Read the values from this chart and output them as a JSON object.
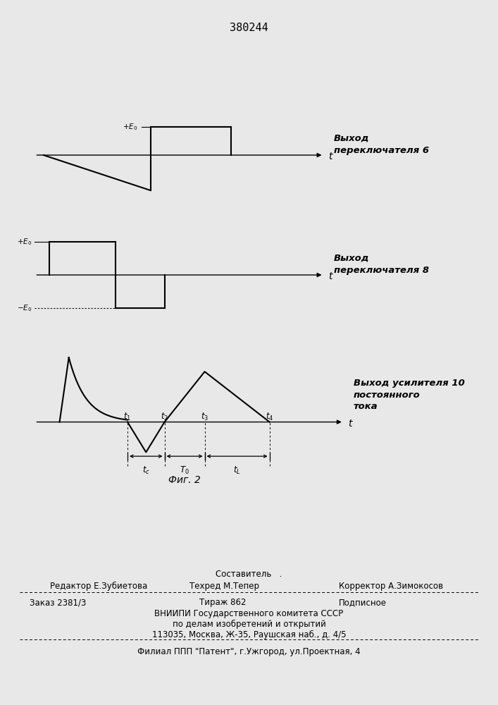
{
  "title": "380244",
  "bg_color": "#e8e8e8",
  "line_color": "#000000",
  "label1": "Выход\nпереключателя 6",
  "label2": "Выход\nпереключателя 8",
  "label3": "Выход усилителя 10\nпостоянного\nтока",
  "fig_caption": "Фиг. 2",
  "footer_line1": "Составитель   .",
  "footer_line2_left": "Редактор Е.Зубиетова",
  "footer_line2_mid": "Техред М.Тепер",
  "footer_line2_right": "Корректор А.Зимокосов",
  "footer_line3_left": "Заказ 2381/3",
  "footer_line3_mid": "Тираж 862",
  "footer_line3_right": "Подписное",
  "footer_line4": "ВНИИПИ Государственного комитета СССР",
  "footer_line5": "по делам изобретений и открытий",
  "footer_line6": "113035, Москва, Ж-35, Раушская наб., д. 4/5",
  "footer_line7": "Филиал ППП \"Патент\", г.Ужгород, ул.Проектная, 4"
}
